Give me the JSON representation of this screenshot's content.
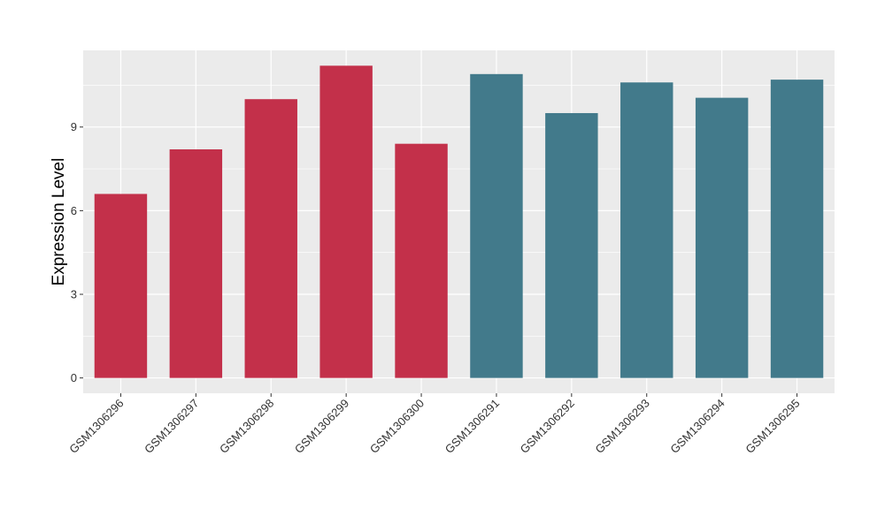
{
  "chart_data": {
    "type": "bar",
    "title": "",
    "xlabel": "",
    "ylabel": "Expression Level",
    "categories": [
      "GSM1306296",
      "GSM1306297",
      "GSM1306298",
      "GSM1306299",
      "GSM1306300",
      "GSM1306291",
      "GSM1306292",
      "GSM1306293",
      "GSM1306294",
      "GSM1306295"
    ],
    "values": [
      6.6,
      8.2,
      10.0,
      11.2,
      8.4,
      10.9,
      9.5,
      10.6,
      10.05,
      10.7
    ],
    "groups": [
      1,
      1,
      1,
      1,
      1,
      2,
      2,
      2,
      2,
      2
    ],
    "group_colors": {
      "1": "#c3304a",
      "2": "#427a8b"
    },
    "ylim": [
      -0.55,
      11.75
    ],
    "yticks": [
      0,
      3,
      6,
      9
    ],
    "ytick_labels": [
      "0",
      "3",
      "6",
      "9"
    ],
    "grid": true,
    "legend": "none",
    "panel_background": "#ebebeb",
    "grid_color": "#ffffff"
  }
}
